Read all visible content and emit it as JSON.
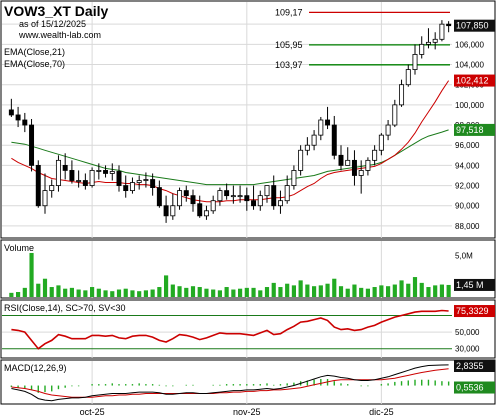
{
  "header": {
    "symbol_title": "VOW3_XT Daily",
    "date_line": "as of 15/12/2025",
    "site": "www.wealth-lab.com"
  },
  "overlays": [
    "EMA(Close,21)",
    "EMA(Close,70)"
  ],
  "colors": {
    "up_candle": "#ffffff",
    "down_candle": "#000000",
    "ema_fast": "#cc0000",
    "ema_slow": "#1a7a1a",
    "level_line_top": "#cc0000",
    "level_line": "#008000",
    "price_badge": "#111111",
    "ema_fast_badge": "#cc0000",
    "ema_slow_badge": "#1f8a1f",
    "volume_bar": "#22aa22",
    "rsi_line": "#cc0000",
    "rsi_band": "#1a7a1a",
    "macd_line": "#000000",
    "macd_signal": "#cc0000",
    "macd_hist": "#22aa22",
    "grid": "#d9d9d9",
    "panel_border": "#000000"
  },
  "chart_data": [
    {
      "panel": "price",
      "type": "candlestick",
      "x": [
        "2025-09-15",
        "2025-09-16",
        "2025-09-17",
        "2025-09-18",
        "2025-09-19",
        "2025-09-22",
        "2025-09-23",
        "2025-09-24",
        "2025-09-25",
        "2025-09-26",
        "2025-09-29",
        "2025-09-30",
        "2025-10-01",
        "2025-10-02",
        "2025-10-03",
        "2025-10-06",
        "2025-10-07",
        "2025-10-08",
        "2025-10-09",
        "2025-10-10",
        "2025-10-13",
        "2025-10-14",
        "2025-10-15",
        "2025-10-16",
        "2025-10-17",
        "2025-10-20",
        "2025-10-21",
        "2025-10-22",
        "2025-10-23",
        "2025-10-24",
        "2025-10-27",
        "2025-10-28",
        "2025-10-29",
        "2025-10-30",
        "2025-10-31",
        "2025-11-03",
        "2025-11-04",
        "2025-11-05",
        "2025-11-06",
        "2025-11-07",
        "2025-11-10",
        "2025-11-11",
        "2025-11-12",
        "2025-11-13",
        "2025-11-14",
        "2025-11-17",
        "2025-11-18",
        "2025-11-19",
        "2025-11-20",
        "2025-11-21",
        "2025-11-24",
        "2025-11-25",
        "2025-11-26",
        "2025-11-27",
        "2025-11-28",
        "2025-12-01",
        "2025-12-02",
        "2025-12-03",
        "2025-12-04",
        "2025-12-05",
        "2025-12-08",
        "2025-12-09",
        "2025-12-10",
        "2025-12-11",
        "2025-12-12",
        "2025-12-15"
      ],
      "open": [
        99.5,
        99.0,
        98.5,
        98.0,
        94.0,
        90.0,
        91.5,
        92.0,
        94.0,
        93.5,
        92.5,
        92.5,
        92.0,
        93.5,
        93.5,
        93.2,
        93.4,
        92.0,
        91.5,
        92.3,
        92.5,
        92.6,
        91.8,
        90.0,
        89.0,
        90.0,
        91.5,
        91.0,
        90.2,
        89.0,
        89.5,
        90.5,
        91.5,
        91.0,
        91.0,
        91.0,
        90.5,
        90.0,
        91.0,
        92.0,
        90.0,
        90.5,
        92.0,
        93.5,
        95.5,
        96.0,
        97.0,
        98.5,
        98.0,
        95.0,
        94.0,
        94.5,
        93.0,
        93.5,
        94.5,
        95.5,
        97.0,
        98.0,
        100.0,
        102.0,
        103.5,
        105.0,
        106.0,
        106.2,
        106.5,
        108.0
      ],
      "high": [
        100.6,
        99.8,
        99.2,
        98.6,
        94.5,
        93.2,
        92.6,
        95.0,
        95.2,
        94.5,
        93.5,
        93.2,
        93.8,
        94.2,
        94.0,
        94.2,
        94.0,
        93.0,
        92.8,
        93.0,
        93.3,
        93.2,
        92.5,
        91.0,
        91.2,
        91.8,
        92.0,
        91.6,
        91.0,
        90.0,
        91.0,
        91.8,
        92.2,
        92.0,
        92.0,
        91.8,
        92.0,
        91.5,
        92.0,
        93.0,
        91.5,
        93.0,
        94.0,
        96.0,
        96.8,
        97.5,
        98.8,
        99.8,
        98.9,
        96.0,
        95.8,
        95.5,
        94.5,
        94.8,
        96.0,
        97.2,
        98.5,
        100.5,
        102.5,
        104.0,
        106.0,
        106.8,
        107.6,
        107.2,
        108.4,
        108.3
      ],
      "low": [
        98.8,
        97.8,
        97.3,
        93.4,
        89.8,
        89.2,
        90.8,
        91.4,
        92.6,
        92.2,
        91.8,
        91.6,
        91.8,
        92.6,
        92.8,
        92.5,
        91.4,
        90.8,
        91.2,
        91.6,
        91.8,
        91.0,
        89.8,
        88.3,
        88.6,
        89.6,
        90.4,
        89.4,
        88.8,
        88.6,
        89.2,
        90.0,
        90.6,
        90.2,
        90.3,
        89.5,
        89.6,
        89.5,
        90.3,
        89.6,
        89.2,
        90.2,
        91.6,
        93.0,
        95.0,
        95.5,
        96.5,
        97.6,
        94.6,
        93.5,
        94.0,
        92.0,
        91.2,
        93.0,
        94.0,
        95.0,
        96.5,
        97.8,
        99.8,
        101.8,
        103.0,
        104.6,
        105.6,
        105.5,
        106.3,
        107.2
      ],
      "close": [
        99.0,
        98.5,
        98.0,
        94.0,
        90.0,
        91.5,
        92.0,
        94.5,
        93.5,
        92.5,
        92.5,
        92.0,
        93.5,
        93.5,
        93.2,
        93.4,
        92.0,
        91.5,
        92.3,
        92.5,
        92.6,
        91.8,
        90.0,
        89.0,
        90.0,
        91.5,
        91.0,
        90.2,
        89.0,
        89.5,
        90.5,
        91.5,
        91.0,
        91.0,
        91.0,
        90.5,
        90.0,
        91.0,
        92.0,
        90.0,
        90.5,
        92.0,
        93.5,
        95.5,
        96.0,
        97.0,
        98.5,
        98.0,
        95.0,
        94.0,
        94.5,
        93.0,
        93.5,
        94.5,
        95.5,
        97.0,
        98.0,
        100.0,
        102.0,
        103.5,
        105.0,
        106.0,
        106.2,
        106.5,
        108.0,
        107.85
      ],
      "ema_fast": [
        94.7,
        94.3,
        94.0,
        93.7,
        93.3,
        93.0,
        92.7,
        92.6,
        92.5,
        92.4,
        92.3,
        92.2,
        92.3,
        92.4,
        92.3,
        92.3,
        92.3,
        92.2,
        92.2,
        92.1,
        92.1,
        92.0,
        91.7,
        91.5,
        91.2,
        91.0,
        90.8,
        90.6,
        90.5,
        90.4,
        90.4,
        90.4,
        90.5,
        90.5,
        90.6,
        90.6,
        90.6,
        90.6,
        90.7,
        90.8,
        90.8,
        90.9,
        91.1,
        91.5,
        91.9,
        92.2,
        92.7,
        93.1,
        93.3,
        93.4,
        93.5,
        93.6,
        93.7,
        93.8,
        93.9,
        94.2,
        94.6,
        95.0,
        95.6,
        96.3,
        97.2,
        98.3,
        99.3,
        100.3,
        101.4,
        102.41
      ],
      "ema_slow": [
        96.3,
        96.2,
        96.1,
        95.9,
        95.7,
        95.5,
        95.3,
        95.1,
        94.9,
        94.7,
        94.5,
        94.3,
        94.1,
        93.9,
        93.7,
        93.6,
        93.5,
        93.3,
        93.2,
        93.1,
        93.0,
        92.9,
        92.8,
        92.7,
        92.6,
        92.5,
        92.4,
        92.3,
        92.2,
        92.1,
        92.1,
        92.1,
        92.1,
        92.1,
        92.1,
        92.1,
        92.1,
        92.2,
        92.3,
        92.4,
        92.5,
        92.6,
        92.7,
        92.8,
        92.9,
        93.0,
        93.2,
        93.4,
        93.5,
        93.6,
        93.7,
        93.8,
        93.9,
        94.0,
        94.1,
        94.3,
        94.6,
        95.0,
        95.4,
        95.8,
        96.2,
        96.6,
        96.9,
        97.1,
        97.3,
        97.518
      ],
      "levels": [
        {
          "label": "109,17",
          "value": 109.17
        },
        {
          "label": "105,95",
          "value": 105.95
        },
        {
          "label": "103,97",
          "value": 103.97
        }
      ],
      "y_ticks": [
        "88,000",
        "90,000",
        "92,000",
        "94,000",
        "96,000",
        "98,000",
        "100,000",
        "102,000",
        "104,000",
        "106,000",
        "108,000"
      ],
      "ylim": [
        87.0,
        110.0
      ],
      "badges": {
        "last_close": "107,850",
        "ema_fast_last": "102,412",
        "ema_slow_last": "97,518"
      },
      "x_ticks": [
        {
          "label": "oct-25",
          "index": 12
        },
        {
          "label": "nov-25",
          "index": 35
        },
        {
          "label": "dic-25",
          "index": 55
        }
      ],
      "grid": true
    },
    {
      "panel": "volume",
      "type": "bar",
      "title": "Volume",
      "values": [
        0.5,
        0.6,
        1.1,
        5.3,
        1.6,
        2.2,
        1.2,
        1.4,
        1.0,
        1.1,
        0.9,
        0.8,
        1.2,
        1.0,
        0.8,
        0.7,
        0.9,
        1.0,
        0.8,
        0.7,
        0.8,
        0.9,
        1.2,
        2.6,
        1.5,
        1.3,
        1.1,
        1.3,
        1.2,
        1.0,
        0.9,
        0.8,
        1.2,
        0.9,
        1.0,
        1.1,
        1.1,
        0.8,
        1.2,
        1.7,
        1.2,
        1.6,
        1.4,
        2.0,
        1.5,
        1.3,
        1.4,
        1.6,
        2.2,
        1.3,
        1.0,
        1.5,
        1.1,
        1.0,
        1.2,
        1.4,
        1.3,
        1.5,
        2.0,
        1.6,
        2.4,
        1.7,
        1.2,
        1.4,
        1.5,
        1.45
      ],
      "y_ticks": [
        "5,0M"
      ],
      "ylim": [
        0,
        6.5
      ],
      "badge": "1,45 M"
    },
    {
      "panel": "rsi",
      "type": "line",
      "title": "RSI(Close,14), SC>70, SV<30",
      "values": [
        53,
        52,
        50,
        40,
        30,
        36,
        40,
        47,
        45,
        42,
        42,
        42,
        46,
        46,
        45,
        46,
        43,
        42,
        45,
        46,
        46,
        44,
        40,
        38,
        42,
        47,
        46,
        44,
        41,
        43,
        46,
        49,
        48,
        48,
        48,
        47,
        46,
        49,
        52,
        47,
        48,
        53,
        57,
        62,
        63,
        65,
        67,
        64,
        56,
        53,
        54,
        52,
        53,
        56,
        58,
        62,
        65,
        68,
        70,
        72,
        74,
        75,
        75,
        75,
        76,
        75.33
      ],
      "bands": [
        30,
        70
      ],
      "y_ticks": [
        "30,000",
        "50,000"
      ],
      "ylim": [
        20,
        85
      ],
      "badge": "75,3329"
    },
    {
      "panel": "macd",
      "type": "line",
      "title": "MACD(12,26,9)",
      "macd": [
        -0.4,
        -0.6,
        -0.8,
        -1.2,
        -1.8,
        -2.0,
        -2.1,
        -1.9,
        -1.8,
        -1.7,
        -1.7,
        -1.6,
        -1.4,
        -1.3,
        -1.2,
        -1.1,
        -1.1,
        -1.1,
        -1.0,
        -0.9,
        -0.9,
        -0.9,
        -1.0,
        -1.2,
        -1.2,
        -1.1,
        -1.0,
        -1.0,
        -1.1,
        -1.1,
        -1.0,
        -0.9,
        -0.8,
        -0.7,
        -0.7,
        -0.6,
        -0.6,
        -0.5,
        -0.4,
        -0.5,
        -0.4,
        -0.2,
        0.0,
        0.3,
        0.6,
        0.9,
        1.2,
        1.4,
        1.3,
        1.1,
        1.0,
        0.8,
        0.7,
        0.7,
        0.8,
        1.0,
        1.2,
        1.5,
        1.8,
        2.1,
        2.4,
        2.6,
        2.75,
        2.8,
        2.83,
        2.8355
      ],
      "signal": [
        -0.2,
        -0.3,
        -0.4,
        -0.6,
        -0.8,
        -1.1,
        -1.3,
        -1.4,
        -1.5,
        -1.6,
        -1.6,
        -1.6,
        -1.6,
        -1.5,
        -1.4,
        -1.4,
        -1.3,
        -1.3,
        -1.2,
        -1.2,
        -1.1,
        -1.1,
        -1.1,
        -1.1,
        -1.1,
        -1.1,
        -1.1,
        -1.1,
        -1.1,
        -1.1,
        -1.1,
        -1.0,
        -1.0,
        -0.9,
        -0.9,
        -0.8,
        -0.8,
        -0.7,
        -0.7,
        -0.6,
        -0.6,
        -0.5,
        -0.4,
        -0.3,
        -0.1,
        0.1,
        0.3,
        0.5,
        0.7,
        0.8,
        0.8,
        0.8,
        0.8,
        0.8,
        0.8,
        0.8,
        0.9,
        1.0,
        1.2,
        1.4,
        1.6,
        1.8,
        1.95,
        2.1,
        2.2,
        2.3
      ],
      "hist": [
        -0.2,
        -0.3,
        -0.4,
        -0.6,
        -1.0,
        -0.9,
        -0.8,
        -0.5,
        -0.3,
        -0.1,
        -0.1,
        0.0,
        0.2,
        0.2,
        0.2,
        0.3,
        0.2,
        0.2,
        0.2,
        0.3,
        0.2,
        0.2,
        0.1,
        -0.1,
        -0.1,
        0.0,
        0.1,
        0.1,
        0.0,
        0.0,
        0.1,
        0.1,
        0.2,
        0.2,
        0.2,
        0.2,
        0.2,
        0.2,
        0.3,
        0.1,
        0.2,
        0.3,
        0.4,
        0.6,
        0.7,
        0.8,
        0.9,
        0.9,
        0.6,
        0.3,
        0.2,
        0.0,
        -0.1,
        -0.1,
        0.0,
        0.2,
        0.3,
        0.5,
        0.6,
        0.7,
        0.8,
        0.8,
        0.8,
        0.7,
        0.6,
        0.5536
      ],
      "ylim": [
        -2.4,
        3.1
      ],
      "badges": {
        "macd_last": "2,8355",
        "hist_last": "0,5536"
      }
    }
  ]
}
